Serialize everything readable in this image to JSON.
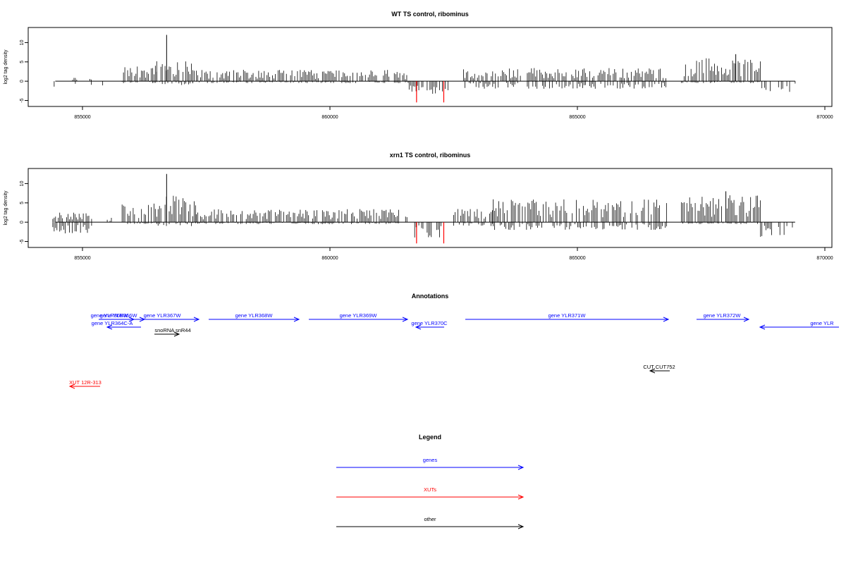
{
  "chart_data": [
    {
      "type": "bar",
      "title": "WT TS control, ribominus",
      "ylabel": "log2 tag density",
      "xlabel": "",
      "xlim": [
        854300,
        870000
      ],
      "ylim": [
        -6,
        13
      ],
      "xticks": [
        855000,
        860000,
        865000,
        870000
      ],
      "yticks": [
        -5,
        0,
        5,
        10
      ],
      "bar_color": "#000000",
      "highlight_color": "#ff0000",
      "highlight_bars": [
        {
          "x": 861750,
          "y": -5.5
        },
        {
          "x": 862300,
          "y": -5.5
        }
      ],
      "regions": [
        {
          "start": 854400,
          "end": 854500,
          "pos": 0,
          "neg": -2
        },
        {
          "start": 854800,
          "end": 854900,
          "pos": 1,
          "neg": -1
        },
        {
          "start": 855000,
          "end": 855050,
          "pos": 0,
          "neg": -2
        },
        {
          "start": 855150,
          "end": 855200,
          "pos": 1,
          "neg": -1
        },
        {
          "start": 855380,
          "end": 855420,
          "pos": 0,
          "neg": -2
        },
        {
          "start": 855800,
          "end": 856500,
          "pos": 4.5,
          "neg": -0.5
        },
        {
          "start": 856500,
          "end": 857300,
          "pos": 6,
          "neg": -1
        },
        {
          "start": 857300,
          "end": 861200,
          "pos": 3,
          "neg": -0.5
        },
        {
          "start": 861300,
          "end": 861600,
          "pos": 2.5,
          "neg": -0.5
        },
        {
          "start": 861600,
          "end": 862400,
          "pos": 0,
          "neg": -3.5
        },
        {
          "start": 862700,
          "end": 866800,
          "pos": 3.5,
          "neg": -2
        },
        {
          "start": 867100,
          "end": 868700,
          "pos": 6,
          "neg": -0.5
        },
        {
          "start": 868700,
          "end": 869400,
          "pos": 0,
          "neg": -3
        }
      ],
      "peaks": [
        {
          "x": 856700,
          "y": 12
        },
        {
          "x": 868200,
          "y": 7
        }
      ]
    },
    {
      "type": "bar",
      "title": "xrn1 TS control, ribominus",
      "ylabel": "log2 tag density",
      "xlabel": "",
      "xlim": [
        854300,
        870000
      ],
      "ylim": [
        -6,
        13
      ],
      "xticks": [
        855000,
        860000,
        865000,
        870000
      ],
      "yticks": [
        -5,
        0,
        5,
        10
      ],
      "bar_color": "#000000",
      "highlight_color": "#ff0000",
      "highlight_bars": [
        {
          "x": 861750,
          "y": -5.5
        },
        {
          "x": 862300,
          "y": -5.5
        }
      ],
      "regions": [
        {
          "start": 854400,
          "end": 855200,
          "pos": 2.5,
          "neg": -3
        },
        {
          "start": 855500,
          "end": 855600,
          "pos": 1.5,
          "neg": 0
        },
        {
          "start": 855800,
          "end": 856500,
          "pos": 5,
          "neg": -0.5
        },
        {
          "start": 856500,
          "end": 857300,
          "pos": 7,
          "neg": -1
        },
        {
          "start": 857300,
          "end": 861400,
          "pos": 3.5,
          "neg": -0.5
        },
        {
          "start": 861500,
          "end": 861600,
          "pos": 2.5,
          "neg": 0
        },
        {
          "start": 861600,
          "end": 862400,
          "pos": 0,
          "neg": -4
        },
        {
          "start": 862500,
          "end": 863300,
          "pos": 3.5,
          "neg": -1
        },
        {
          "start": 863300,
          "end": 866800,
          "pos": 6,
          "neg": -2
        },
        {
          "start": 867100,
          "end": 868700,
          "pos": 7,
          "neg": -0.5
        },
        {
          "start": 868700,
          "end": 869400,
          "pos": 0,
          "neg": -4.5
        }
      ],
      "peaks": [
        {
          "x": 856700,
          "y": 12.5
        },
        {
          "x": 868000,
          "y": 8
        }
      ]
    }
  ],
  "annotations": {
    "title": "Annotations",
    "genes": [
      {
        "label": "gene YLR365W",
        "color": "#0000ff",
        "dir": "right"
      },
      {
        "label": "gene YLR366W",
        "color": "#0000ff",
        "dir": "right"
      },
      {
        "label": "gene YLR364C-A",
        "color": "#0000ff",
        "dir": "left"
      },
      {
        "label": "gene YLR367W",
        "color": "#0000ff",
        "dir": "right"
      },
      {
        "label": "gene YLR368W",
        "color": "#0000ff",
        "dir": "right"
      },
      {
        "label": "gene YLR369W",
        "color": "#0000ff",
        "dir": "right"
      },
      {
        "label": "gene YLR370C",
        "color": "#0000ff",
        "dir": "left"
      },
      {
        "label": "gene YLR371W",
        "color": "#0000ff",
        "dir": "right"
      },
      {
        "label": "gene YLR372W",
        "color": "#0000ff",
        "dir": "right"
      },
      {
        "label": "gene YLR",
        "color": "#0000ff",
        "dir": "left"
      },
      {
        "label": "snoRNA snR44",
        "color": "#000000",
        "dir": "right"
      },
      {
        "label": "CUT CUT752",
        "color": "#000000",
        "dir": "left"
      },
      {
        "label": "XUT 12R-313",
        "color": "#ff0000",
        "dir": "left"
      }
    ]
  },
  "legend": {
    "title": "Legend",
    "items": [
      {
        "label": "genes",
        "color": "#0000ff"
      },
      {
        "label": "XUTs",
        "color": "#ff0000"
      },
      {
        "label": "other",
        "color": "#000000"
      }
    ]
  }
}
